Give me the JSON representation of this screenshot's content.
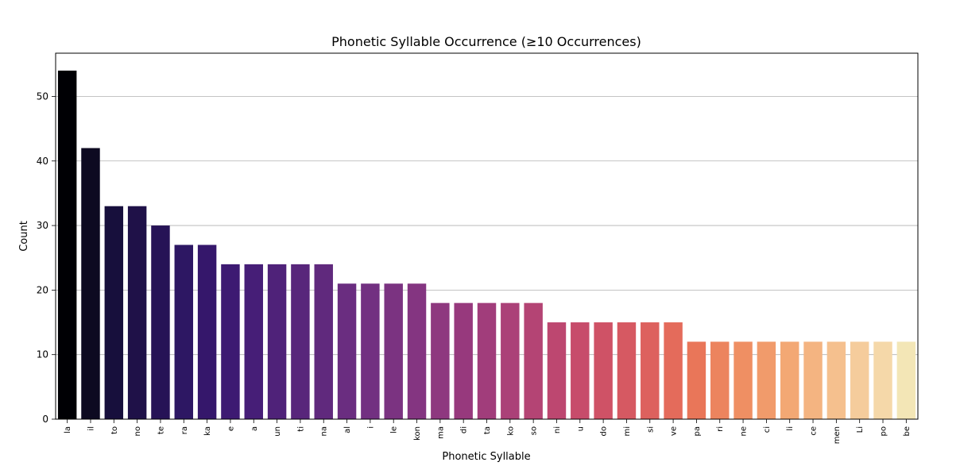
{
  "chart_data": {
    "type": "bar",
    "title": "Phonetic Syllable Occurrence (≥10 Occurrences)",
    "xlabel": "Phonetic Syllable",
    "ylabel": "Count",
    "ylim": [
      0,
      56.7
    ],
    "yticks": [
      0,
      10,
      20,
      30,
      40,
      50
    ],
    "grid": "y",
    "legend": "none",
    "colormap": "magma",
    "categories": [
      "la",
      "il",
      "to",
      "no",
      "te",
      "ra",
      "ka",
      "e",
      "a",
      "un",
      "ti",
      "na",
      "al",
      "i",
      "le",
      "kon",
      "ma",
      "di",
      "ta",
      "ko",
      "so",
      "ni",
      "u",
      "do",
      "mi",
      "si",
      "ve",
      "pa",
      "ri",
      "ne",
      "ci",
      "li",
      "ce",
      "men",
      "Li",
      "po",
      "be"
    ],
    "values": [
      54,
      42,
      33,
      33,
      30,
      27,
      27,
      24,
      24,
      24,
      24,
      24,
      21,
      21,
      21,
      21,
      18,
      18,
      18,
      18,
      18,
      15,
      15,
      15,
      15,
      15,
      15,
      12,
      12,
      12,
      12,
      12,
      12,
      12,
      12,
      12,
      12
    ],
    "colors": [
      "#000004",
      "#0d0a21",
      "#170f3c",
      "#1f1148",
      "#261356",
      "#2d1763",
      "#35176b",
      "#3d1a72",
      "#461e77",
      "#4f2279",
      "#58267b",
      "#60297d",
      "#6a2d80",
      "#723081",
      "#7b3381",
      "#843581",
      "#8e387f",
      "#97397d",
      "#a13d7b",
      "#ab4178",
      "#b44474",
      "#bd4770",
      "#c74c6b",
      "#cf5266",
      "#d65962",
      "#dd615e",
      "#e46b5b",
      "#e97659",
      "#ec845e",
      "#ef8f63",
      "#f19b6b",
      "#f3a874",
      "#f4b481",
      "#f5c08e",
      "#f5cc9c",
      "#f5d8a9",
      "#f3e6b6"
    ]
  }
}
